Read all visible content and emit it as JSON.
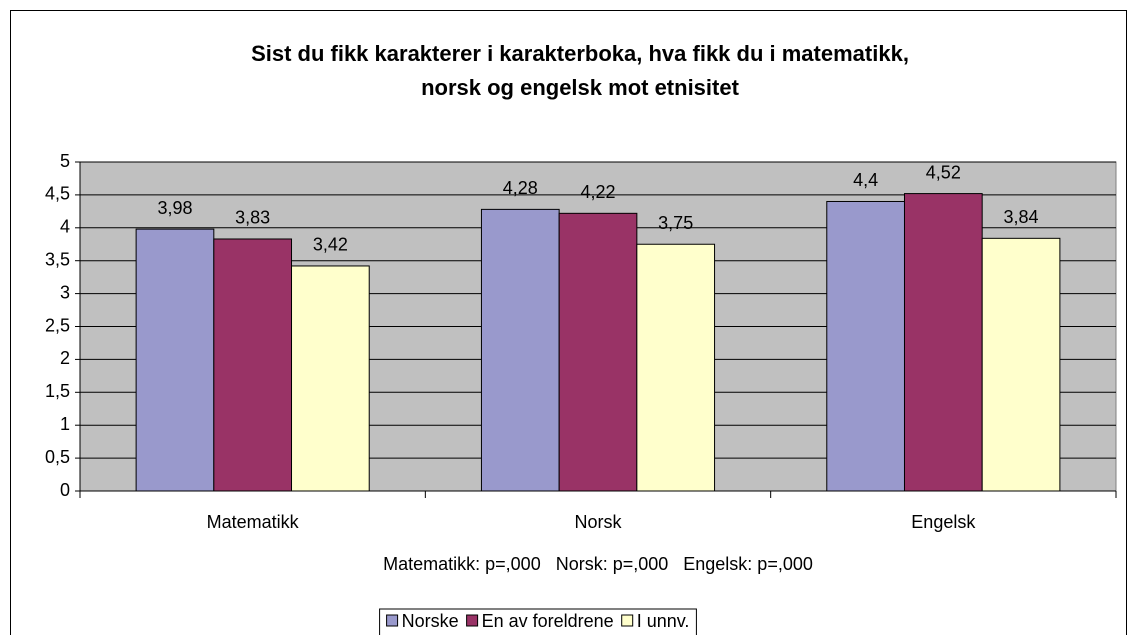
{
  "chart_data": {
    "type": "bar",
    "title": [
      "Sist du fikk karakterer i karakterboka, hva fikk du i matematikk,",
      "norsk og engelsk mot etnisitet"
    ],
    "categories": [
      "Matematikk",
      "Norsk",
      "Engelsk"
    ],
    "series": [
      {
        "name": "Norske",
        "color": "#9999cc",
        "values": [
          3.98,
          4.28,
          4.4
        ],
        "value_labels": [
          "3,98",
          "4,28",
          "4,4"
        ]
      },
      {
        "name": "En av foreldrene",
        "color": "#993366",
        "values": [
          3.83,
          4.22,
          4.52
        ],
        "value_labels": [
          "3,83",
          "4,22",
          "4,52"
        ]
      },
      {
        "name": "I unnv.",
        "color": "#ffffcc",
        "values": [
          3.42,
          3.75,
          3.84
        ],
        "value_labels": [
          "3,42",
          "3,75",
          "3,84"
        ]
      }
    ],
    "annotation": "Matematikk: p=,000   Norsk: p=,000   Engelsk: p=,000",
    "ylim": [
      0,
      5
    ],
    "yticks": [
      0,
      {
        "value": 0.5,
        "label": "0,5"
      },
      1,
      {
        "value": 1.5,
        "label": "1,5"
      },
      2,
      {
        "value": 2.5,
        "label": "2,5"
      },
      3,
      {
        "value": 3.5,
        "label": "3,5"
      },
      4,
      {
        "value": 4.5,
        "label": "4,5"
      },
      5
    ],
    "grid": true,
    "plot_background": "#c0c0c0",
    "legend": "bottom"
  }
}
